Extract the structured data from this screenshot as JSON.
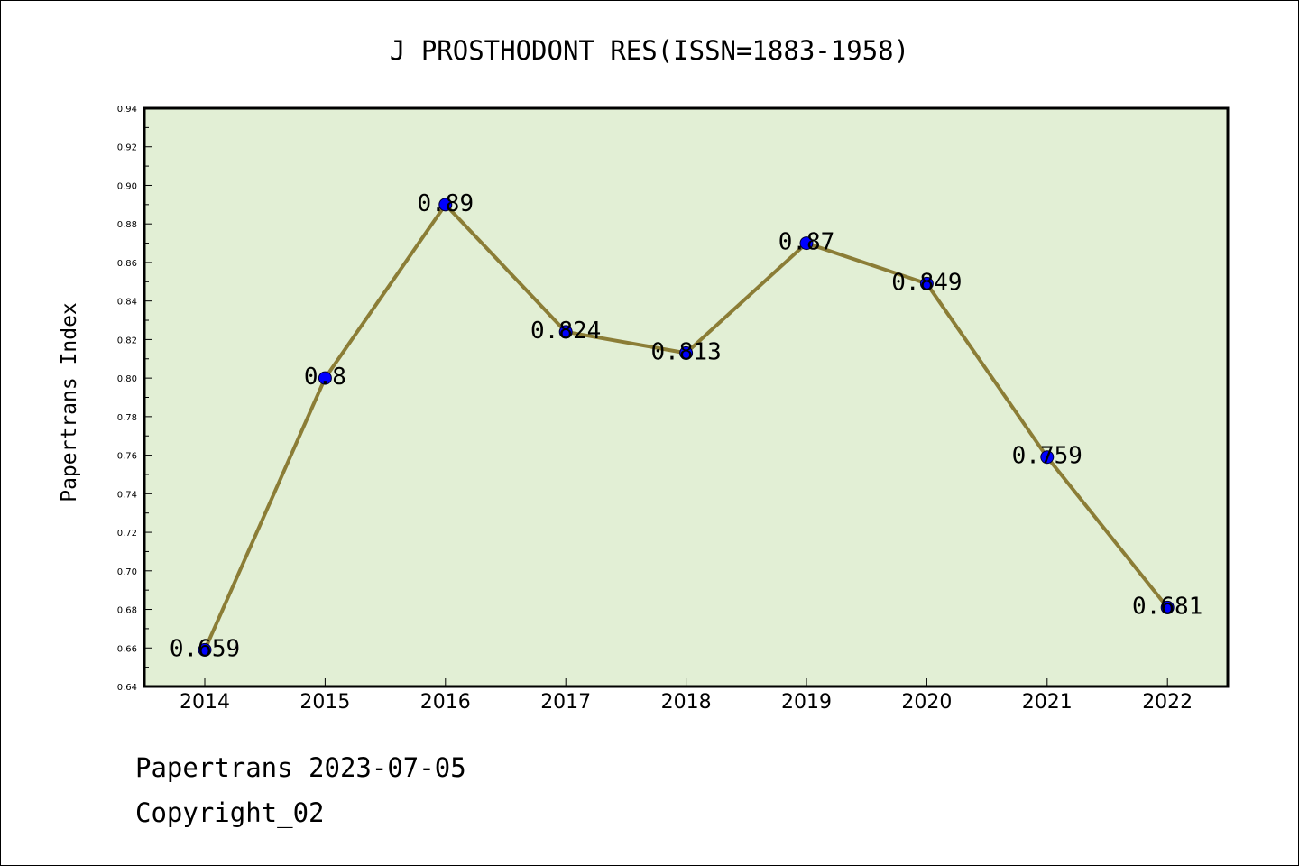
{
  "chart_data": {
    "type": "line",
    "title": "J PROSTHODONT RES(ISSN=1883-1958)",
    "xlabel": "",
    "ylabel": "Papertrans Index",
    "categories": [
      "2014",
      "2015",
      "2016",
      "2017",
      "2018",
      "2019",
      "2020",
      "2021",
      "2022"
    ],
    "values": [
      0.659,
      0.8,
      0.89,
      0.824,
      0.813,
      0.87,
      0.849,
      0.759,
      0.681
    ],
    "data_labels": [
      "0.659",
      "0.8",
      "0.89",
      "0.824",
      "0.813",
      "0.87",
      "0.849",
      "0.759",
      "0.681"
    ],
    "ylim": [
      0.64,
      0.94
    ],
    "yticks": [
      "0.64",
      "0.66",
      "0.68",
      "0.70",
      "0.72",
      "0.74",
      "0.76",
      "0.78",
      "0.80",
      "0.82",
      "0.84",
      "0.86",
      "0.88",
      "0.90",
      "0.92",
      "0.94"
    ],
    "grid": false,
    "colors": {
      "plot_background": "#e2efd5",
      "line": "#8b7d36",
      "marker": "#0000ff"
    }
  },
  "footer": {
    "date_line": "Papertrans 2023-07-05",
    "copyright": "Copyright_02"
  }
}
